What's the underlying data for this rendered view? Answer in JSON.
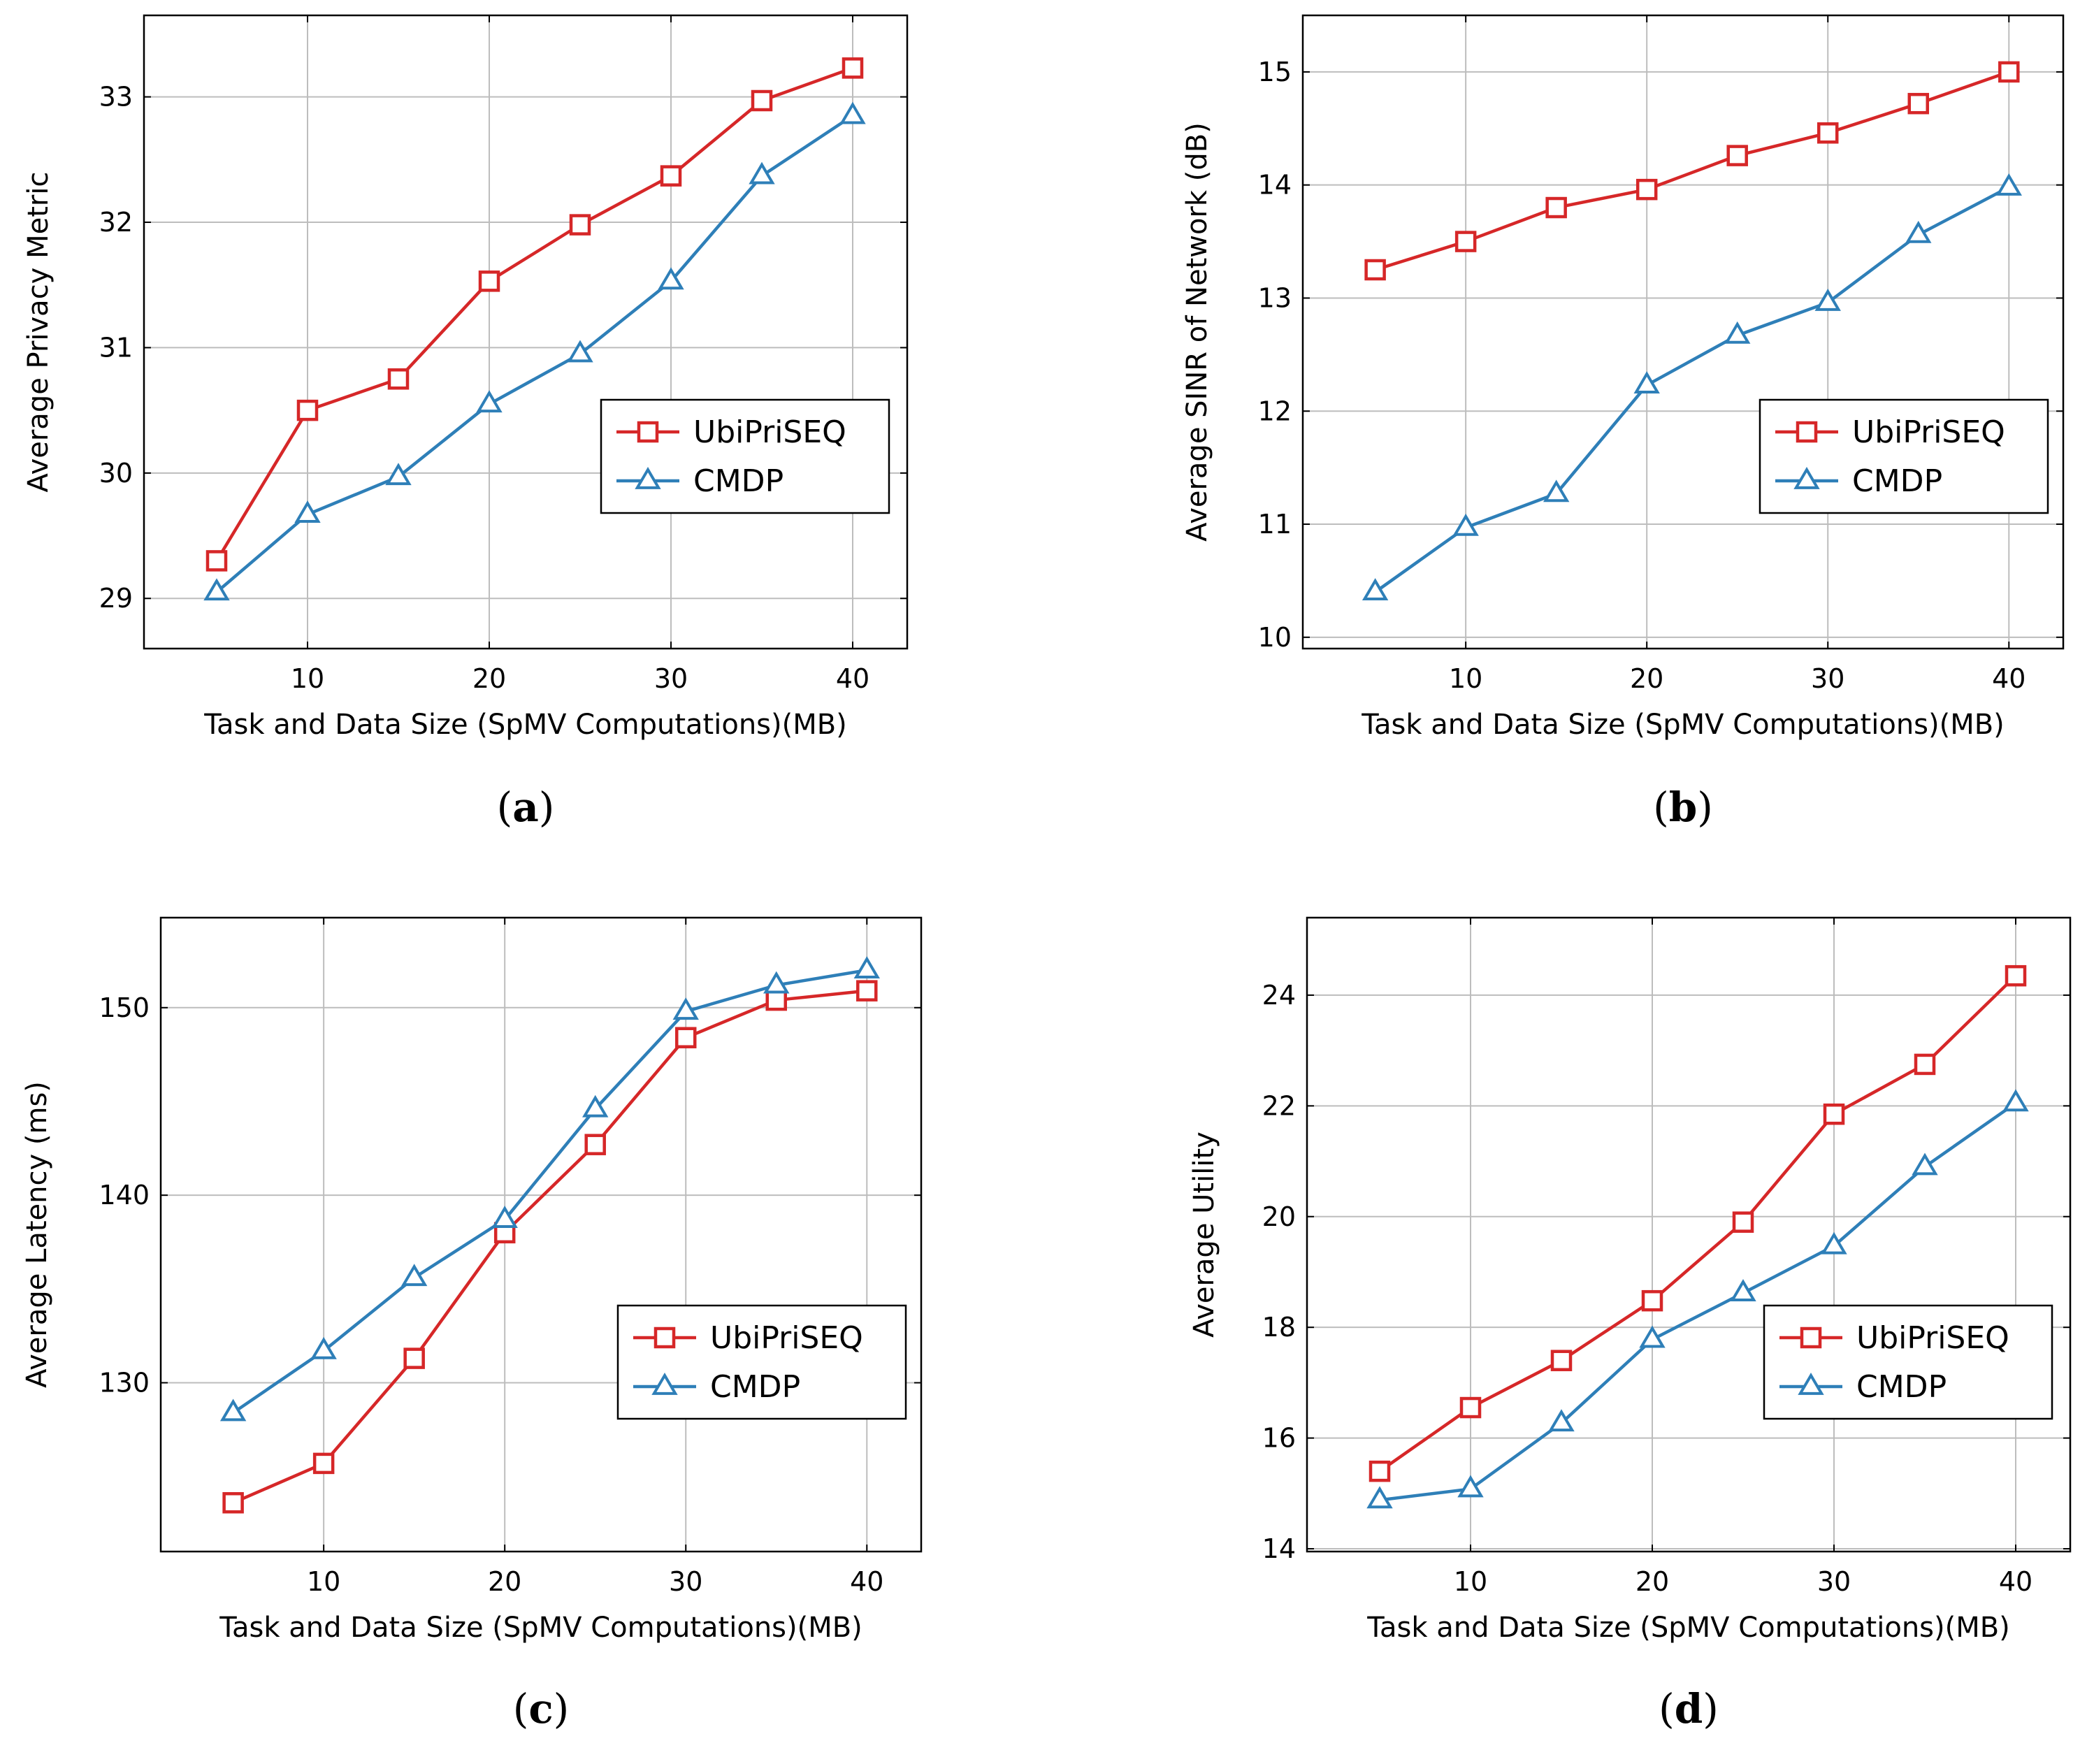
{
  "chart_data": [
    {
      "type": "line",
      "id": "a",
      "caption": "a",
      "xlabel": "Task and Data Size (SpMV Computations)(MB)",
      "ylabel": "Average Privacy Metric",
      "x": [
        5,
        10,
        15,
        20,
        25,
        30,
        35,
        40
      ],
      "xlim": [
        1,
        43
      ],
      "ylim": [
        28.6,
        33.65
      ],
      "xticks": [
        10,
        20,
        30,
        40
      ],
      "yticks": [
        29,
        30,
        31,
        32,
        33
      ],
      "legend_position": "center-right",
      "series": [
        {
          "name": "UbiPriSEQ",
          "marker": "square",
          "color": "#d62728",
          "values": [
            29.3,
            30.5,
            30.75,
            31.53,
            31.98,
            32.37,
            32.97,
            33.23
          ]
        },
        {
          "name": "CMDP",
          "marker": "triangle",
          "color": "#2e7fb8",
          "values": [
            29.05,
            29.67,
            29.97,
            30.55,
            30.95,
            31.53,
            32.37,
            32.85
          ]
        }
      ]
    },
    {
      "type": "line",
      "id": "b",
      "caption": "b",
      "xlabel": "Task and Data Size (SpMV Computations)(MB)",
      "ylabel": "Average SINR of Network (dB)",
      "x": [
        5,
        10,
        15,
        20,
        25,
        30,
        35,
        40
      ],
      "xlim": [
        1,
        43
      ],
      "ylim": [
        9.9,
        15.5
      ],
      "xticks": [
        10,
        20,
        30,
        40
      ],
      "yticks": [
        10,
        11,
        12,
        13,
        14,
        15
      ],
      "legend_position": "center-right",
      "series": [
        {
          "name": "UbiPriSEQ",
          "marker": "square",
          "color": "#d62728",
          "values": [
            13.25,
            13.5,
            13.8,
            13.96,
            14.26,
            14.46,
            14.72,
            15.0
          ]
        },
        {
          "name": "CMDP",
          "marker": "triangle",
          "color": "#2e7fb8",
          "values": [
            10.4,
            10.97,
            11.27,
            12.23,
            12.67,
            12.96,
            13.56,
            13.98
          ]
        }
      ]
    },
    {
      "type": "line",
      "id": "c",
      "caption": "c",
      "xlabel": "Task and Data Size (SpMV Computations)(MB)",
      "ylabel": "Average Latency (ms)",
      "x": [
        5,
        10,
        15,
        20,
        25,
        30,
        35,
        40
      ],
      "xlim": [
        1,
        43
      ],
      "ylim": [
        121,
        154.8
      ],
      "xticks": [
        10,
        20,
        30,
        40
      ],
      "yticks": [
        130,
        140,
        150
      ],
      "legend_position": "lower-right",
      "series": [
        {
          "name": "UbiPriSEQ",
          "marker": "square",
          "color": "#d62728",
          "values": [
            123.6,
            125.7,
            131.3,
            138.0,
            142.7,
            148.4,
            150.4,
            150.9
          ]
        },
        {
          "name": "CMDP",
          "marker": "triangle",
          "color": "#2e7fb8",
          "values": [
            128.4,
            131.7,
            135.6,
            138.7,
            144.6,
            149.8,
            151.2,
            152.0
          ]
        }
      ]
    },
    {
      "type": "line",
      "id": "d",
      "caption": "d",
      "xlabel": "Task and Data Size (SpMV Computations)(MB)",
      "ylabel": "Average Utility",
      "x": [
        5,
        10,
        15,
        20,
        25,
        30,
        35,
        40
      ],
      "xlim": [
        1,
        43
      ],
      "ylim": [
        13.95,
        25.4
      ],
      "xticks": [
        10,
        20,
        30,
        40
      ],
      "yticks": [
        14,
        16,
        18,
        20,
        22,
        24
      ],
      "legend_position": "lower-right",
      "series": [
        {
          "name": "UbiPriSEQ",
          "marker": "square",
          "color": "#d62728",
          "values": [
            15.4,
            16.55,
            17.4,
            18.48,
            19.9,
            21.85,
            22.75,
            24.35
          ]
        },
        {
          "name": "CMDP",
          "marker": "triangle",
          "color": "#2e7fb8",
          "values": [
            14.88,
            15.08,
            16.27,
            17.78,
            18.62,
            19.47,
            20.9,
            22.05
          ]
        }
      ]
    }
  ]
}
